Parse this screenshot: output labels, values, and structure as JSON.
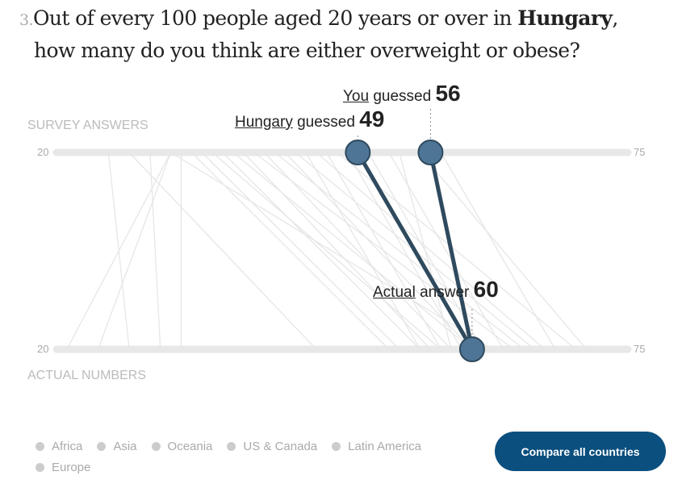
{
  "question": {
    "number": "3.",
    "text_before": "Out of every 100 people aged 20 years or over in ",
    "country": "Hungary",
    "text_after": ",",
    "line2": "how many do you think are either overweight or obese?"
  },
  "chart_data": {
    "type": "slope",
    "axis_top_label": "SURVEY ANSWERS",
    "axis_bottom_label": "ACTUAL NUMBERS",
    "range": [
      20,
      75
    ],
    "range_labels": {
      "min": "20",
      "max": "75"
    },
    "highlight": {
      "country_guess": 49,
      "user_guess": 56,
      "actual": 60,
      "country_label": "Hungary",
      "country_suffix": " guessed ",
      "user_label": "You",
      "user_suffix": " guessed ",
      "actual_label": "Actual",
      "actual_suffix": " answer ",
      "color": "#4e7595",
      "line_color": "#2f4a5e"
    },
    "other_countries": [
      [
        32,
        32
      ],
      [
        25,
        27
      ],
      [
        31,
        21
      ],
      [
        31,
        24
      ],
      [
        33,
        52
      ],
      [
        34,
        53
      ],
      [
        36,
        55
      ],
      [
        38,
        56
      ],
      [
        40,
        58
      ],
      [
        31,
        62
      ],
      [
        27,
        45
      ],
      [
        29,
        30
      ],
      [
        37,
        60
      ],
      [
        39,
        64
      ],
      [
        41,
        65
      ],
      [
        43,
        66
      ],
      [
        45,
        67
      ],
      [
        47,
        70
      ],
      [
        48,
        59
      ],
      [
        50,
        61
      ],
      [
        52,
        63
      ],
      [
        53,
        58
      ],
      [
        55,
        71
      ],
      [
        57,
        68
      ],
      [
        35,
        57
      ],
      [
        42,
        60
      ],
      [
        44,
        55
      ],
      [
        46,
        57
      ]
    ]
  },
  "legend": [
    "Africa",
    "Asia",
    "Oceania",
    "US & Canada",
    "Latin America",
    "Europe"
  ],
  "button_label": "Compare all countries"
}
